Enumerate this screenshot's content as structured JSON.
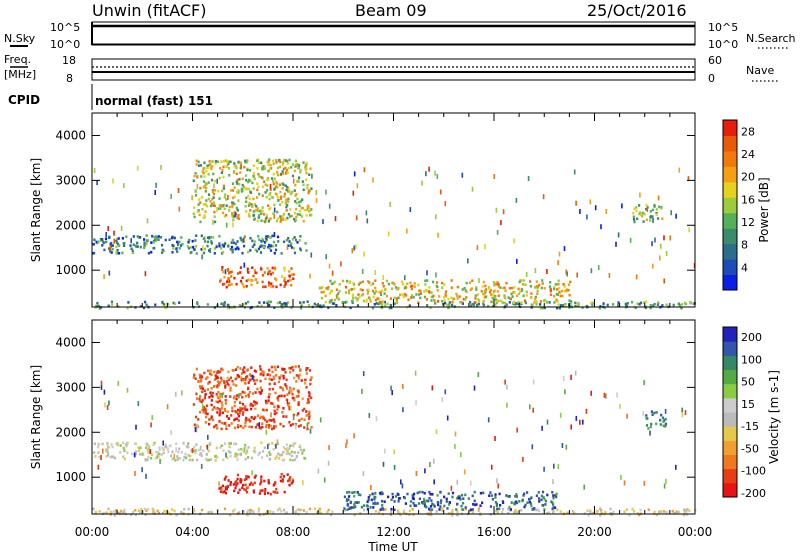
{
  "header": {
    "station": "Unwin (fitACF)",
    "beam": "Beam 09",
    "date": "25/Oct/2016"
  },
  "strips": {
    "nsky_label": "N.Sky",
    "nsearch_label": "N.Search",
    "sky_ticks": [
      "10^5",
      "10^0"
    ],
    "freq_label_1": "Freq.",
    "freq_label_2": "[MHz]",
    "freq_ticks": [
      "18",
      "8"
    ],
    "nave_label": "Nave",
    "nave_ticks": [
      "60",
      "0"
    ],
    "cpid_label": "CPID",
    "cpid_value": "normal (fast) 151"
  },
  "x_axis": {
    "label": "Time UT",
    "ticks": [
      "00:00",
      "04:00",
      "08:00",
      "12:00",
      "16:00",
      "20:00",
      "00:00"
    ]
  },
  "colors": {
    "power_scale": [
      "#0a1ee6",
      "#1f4bb8",
      "#2a6e8c",
      "#3b8c6a",
      "#55b05a",
      "#9acc3c",
      "#e6d21e",
      "#f5a014",
      "#f07a0c",
      "#e85a0a",
      "#e61e0a"
    ],
    "velocity_scale": [
      "#2222bb",
      "#3355aa",
      "#338866",
      "#55aa44",
      "#88cc44",
      "#cccccc",
      "#bbbbbb",
      "#e6c84a",
      "#f0a030",
      "#f07820",
      "#e83c14",
      "#e61414"
    ]
  },
  "chart_data": [
    {
      "type": "heatmap",
      "title": "",
      "xlabel": "Time UT",
      "ylabel": "Slant Range [km]",
      "x_ticks": [
        "00:00",
        "04:00",
        "08:00",
        "12:00",
        "16:00",
        "20:00",
        "00:00"
      ],
      "x_range_hours": [
        0,
        24
      ],
      "ylim": [
        180,
        4500
      ],
      "y_ticks": [
        1000,
        2000,
        3000,
        4000
      ],
      "colorbar": {
        "label": "Power [dB]",
        "ticks": [
          4,
          8,
          12,
          16,
          20,
          24,
          28
        ],
        "range": [
          0,
          30
        ]
      },
      "features": [
        {
          "name": "ground-band",
          "t_start": 0.0,
          "t_end": 24.0,
          "range_low": 180,
          "range_high": 330,
          "value": 10
        },
        {
          "name": "f-region-tongue",
          "t_start": 0.0,
          "t_end": 8.5,
          "range_low": 1400,
          "range_high": 1800,
          "value": 8
        },
        {
          "name": "near-range-echo",
          "t_start": 5.0,
          "t_end": 8.0,
          "range_low": 650,
          "range_high": 1100,
          "value": 26
        },
        {
          "name": "upper-scatter",
          "t_start": 4.0,
          "t_end": 8.7,
          "range_low": 2100,
          "range_high": 3500,
          "value": 16
        },
        {
          "name": "post-noon-band",
          "t_start": 9.0,
          "t_end": 19.0,
          "range_low": 300,
          "range_high": 800,
          "value": 18
        },
        {
          "name": "evening-patch",
          "t_start": 21.5,
          "t_end": 22.8,
          "range_low": 2100,
          "range_high": 2500,
          "value": 14
        }
      ]
    },
    {
      "type": "heatmap",
      "title": "",
      "xlabel": "Time UT",
      "ylabel": "Slant Range [km]",
      "x_ticks": [
        "00:00",
        "04:00",
        "08:00",
        "12:00",
        "16:00",
        "20:00",
        "00:00"
      ],
      "x_range_hours": [
        0,
        24
      ],
      "ylim": [
        180,
        4500
      ],
      "y_ticks": [
        1000,
        2000,
        3000,
        4000
      ],
      "colorbar": {
        "label": "Velocity [m s-1]",
        "tick_labels": [
          "200",
          "100",
          "50",
          "15",
          "-15",
          "-50",
          "-100",
          "-200"
        ],
        "range": [
          -250,
          250
        ]
      },
      "features": [
        {
          "name": "ground-band",
          "t_start": 0.0,
          "t_end": 24.0,
          "range_low": 180,
          "range_high": 330,
          "value": -40
        },
        {
          "name": "f-region-tongue",
          "t_start": 0.0,
          "t_end": 8.5,
          "range_low": 1400,
          "range_high": 1800,
          "value": 0
        },
        {
          "name": "near-range-echo",
          "t_start": 5.0,
          "t_end": 8.0,
          "range_low": 650,
          "range_high": 1100,
          "value": -220
        },
        {
          "name": "upper-scatter",
          "t_start": 4.0,
          "t_end": 8.7,
          "range_low": 2100,
          "range_high": 3500,
          "value": -180
        },
        {
          "name": "post-noon-band",
          "t_start": 10.0,
          "t_end": 18.5,
          "range_low": 300,
          "range_high": 700,
          "value": 180
        },
        {
          "name": "evening-patch",
          "t_start": 22.0,
          "t_end": 22.8,
          "range_low": 2100,
          "range_high": 2500,
          "value": 150
        }
      ]
    }
  ]
}
